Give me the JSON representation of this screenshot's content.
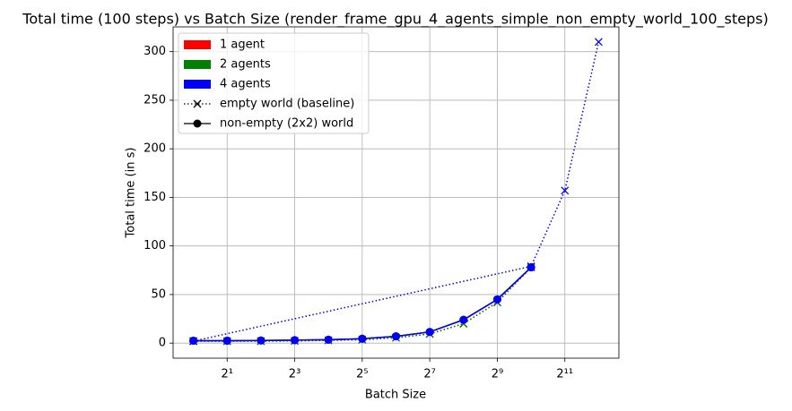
{
  "chart_data": {
    "type": "line",
    "title": "Total time (100 steps) vs Batch Size (render_frame_gpu_4_agents_simple_non_empty_world_100_steps)",
    "xlabel": "Batch Size",
    "ylabel": "Total time (in s)",
    "xscale": "log2",
    "xlim": [
      0.6598,
      6208
    ],
    "xticks": [
      {
        "value": 2,
        "label": "2¹"
      },
      {
        "value": 8,
        "label": "2³"
      },
      {
        "value": 32,
        "label": "2⁵"
      },
      {
        "value": 128,
        "label": "2⁷"
      },
      {
        "value": 512,
        "label": "2⁹"
      },
      {
        "value": 2048,
        "label": "2¹¹"
      }
    ],
    "ylim": [
      -15.5,
      325.5
    ],
    "yticks": [
      0,
      50,
      100,
      150,
      200,
      250,
      300
    ],
    "grid": true,
    "legend_loc": "upper left",
    "legend": {
      "agents": [
        {
          "name": "1 agent",
          "color": "#ff0000"
        },
        {
          "name": "2 agents",
          "color": "#008000"
        },
        {
          "name": "4 agents",
          "color": "#0000ff"
        }
      ],
      "styles": [
        {
          "name": "empty world (baseline)",
          "dash": "dotted",
          "marker": "x"
        },
        {
          "name": "non-empty (2x2) world",
          "dash": "solid",
          "marker": "o"
        }
      ]
    },
    "series": [
      {
        "agent": 0,
        "style": 0,
        "x": [
          1,
          2,
          4,
          8,
          16,
          32,
          64,
          128,
          256,
          512,
          1024
        ],
        "values": [
          2,
          2,
          2,
          2.3,
          2.8,
          3.5,
          5.5,
          9.5,
          20,
          42,
          78
        ]
      },
      {
        "agent": 1,
        "style": 0,
        "x": [
          1,
          2,
          4,
          8,
          16,
          32,
          64,
          128,
          256,
          512,
          1024
        ],
        "values": [
          2,
          2,
          2,
          2.3,
          2.8,
          3.5,
          5.5,
          9.5,
          20,
          42,
          78
        ]
      },
      {
        "agent": 2,
        "style": 0,
        "x": [
          1,
          1024,
          2048,
          4096
        ],
        "values": [
          2,
          79,
          157,
          310
        ]
      },
      {
        "agent": 0,
        "style": 1,
        "x": [
          1,
          2,
          4,
          8,
          16,
          32,
          64,
          128,
          256,
          512,
          1024
        ],
        "values": [
          2.5,
          2.5,
          2.7,
          3,
          3.5,
          4.5,
          7,
          11.5,
          24,
          45,
          78
        ]
      },
      {
        "agent": 1,
        "style": 1,
        "x": [
          1,
          2,
          4,
          8,
          16,
          32,
          64,
          128,
          256,
          512,
          1024
        ],
        "values": [
          2.5,
          2.5,
          2.7,
          3,
          3.5,
          4.5,
          7,
          11.5,
          24,
          45,
          78
        ]
      },
      {
        "agent": 2,
        "style": 1,
        "x": [
          1,
          2,
          4,
          8,
          16,
          32,
          64,
          128,
          256,
          512,
          1024
        ],
        "values": [
          2.5,
          2.5,
          2.7,
          3,
          3.5,
          4.5,
          7,
          11.5,
          24,
          45,
          78
        ]
      }
    ]
  }
}
